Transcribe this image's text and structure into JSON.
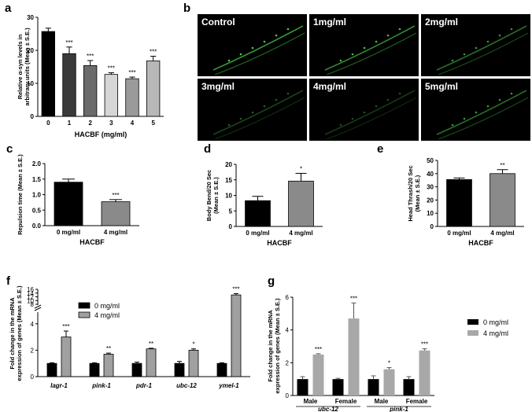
{
  "chart_data": [
    {
      "panel": "a",
      "type": "bar",
      "categories": [
        "0",
        "1",
        "2",
        "3",
        "4",
        "5"
      ],
      "values": [
        25.7,
        19.0,
        15.4,
        12.7,
        11.4,
        16.8
      ],
      "errors": [
        1.0,
        2.0,
        1.5,
        0.5,
        0.5,
        1.4
      ],
      "significance": [
        "",
        "***",
        "***",
        "***",
        "***",
        "***"
      ],
      "colors": [
        "#000000",
        "#3a3a3a",
        "#6b6b6b",
        "#d6d6d6",
        "#9a9a9a",
        "#b8b8b8"
      ],
      "xlabel": "HACBF (mg/ml)",
      "ylabel": "Relative α-syn levels in arbitrary units (Mean ± S.E.)",
      "ylim": [
        0,
        30
      ],
      "yticks": [
        "0",
        "10",
        "20",
        "30"
      ]
    },
    {
      "panel": "c",
      "type": "bar",
      "categories": [
        "0 mg/ml",
        "4 mg/ml"
      ],
      "values": [
        1.4,
        0.77
      ],
      "errors": [
        0.1,
        0.07
      ],
      "significance": [
        "",
        "***"
      ],
      "colors": [
        "#000000",
        "#8a8a8a"
      ],
      "xlabel": "HACBF",
      "ylabel": "Repulsion time (Mean ± S.E.)",
      "ylim": [
        0,
        2.0
      ],
      "yticks": [
        "0.0",
        "0.5",
        "1.0",
        "1.5",
        "2.0"
      ]
    },
    {
      "panel": "d",
      "type": "bar",
      "categories": [
        "0 mg/ml",
        "4 mg/ml"
      ],
      "values": [
        8.3,
        14.6
      ],
      "errors": [
        1.4,
        2.5
      ],
      "significance": [
        "",
        "*"
      ],
      "colors": [
        "#000000",
        "#8a8a8a"
      ],
      "xlabel": "HACBF",
      "ylabel": "Body Bend/20 Sec (Mean ± S.E.)",
      "ylim": [
        0,
        20
      ],
      "yticks": [
        "0",
        "5",
        "10",
        "15",
        "20"
      ]
    },
    {
      "panel": "e",
      "type": "bar",
      "categories": [
        "0 mg/ml",
        "4 mg/ml"
      ],
      "values": [
        35.5,
        40.0
      ],
      "errors": [
        1.2,
        3.0
      ],
      "significance": [
        "",
        "**"
      ],
      "colors": [
        "#000000",
        "#8a8a8a"
      ],
      "xlabel": "HACBF",
      "ylabel": "Head Thrash/20 Sec (Mean ± S.E.)",
      "ylim": [
        0,
        50
      ],
      "yticks": [
        "0",
        "10",
        "20",
        "30",
        "40",
        "50"
      ]
    },
    {
      "panel": "f",
      "type": "bar",
      "categories": [
        "lagr-1",
        "pink-1",
        "pdr-1",
        "ubc-12",
        "ymel-1"
      ],
      "series": [
        {
          "name": "0 mg/ml",
          "color": "#000000",
          "values": [
            1.0,
            1.0,
            1.0,
            1.0,
            1.0
          ],
          "errors": [
            0.05,
            0.05,
            0.1,
            0.15,
            0.05
          ]
        },
        {
          "name": "4 mg/ml",
          "color": "#a0a0a0",
          "values": [
            3.0,
            1.7,
            2.1,
            2.0,
            13.0
          ],
          "errors": [
            0.45,
            0.08,
            0.05,
            0.1,
            0.7
          ],
          "significance": [
            "***",
            "**",
            "**",
            "*",
            "***"
          ]
        }
      ],
      "ylabel": "Fold change in the mRNA expression of genes (Mean ± S.E.)",
      "ylim": [
        0,
        16
      ],
      "axis_break": [
        5,
        8
      ],
      "yticks": [
        "0",
        "2",
        "4",
        "8",
        "10",
        "12",
        "14",
        "16"
      ]
    },
    {
      "panel": "g",
      "type": "bar",
      "groups": [
        "ubc-12",
        "pink-1"
      ],
      "categories": [
        "Male",
        "Female",
        "Male",
        "Female"
      ],
      "series": [
        {
          "name": "0 mg/ml",
          "color": "#000000",
          "values": [
            1.0,
            1.0,
            1.0,
            1.0
          ],
          "errors": [
            0.15,
            0.05,
            0.2,
            0.15
          ]
        },
        {
          "name": "4 mg/ml",
          "color": "#a8a8a8",
          "values": [
            2.5,
            4.7,
            1.6,
            2.75
          ],
          "errors": [
            0.05,
            0.95,
            0.1,
            0.1
          ],
          "significance": [
            "***",
            "***",
            "*",
            "***"
          ]
        }
      ],
      "ylabel": "Fold change in the mRNA expression of genes (Mean ± S.E.)",
      "ylim": [
        0,
        6
      ],
      "yticks": [
        "0",
        "2",
        "4",
        "6"
      ]
    }
  ],
  "panels": {
    "labels": [
      "a",
      "b",
      "c",
      "d",
      "e",
      "f",
      "g"
    ]
  },
  "images": {
    "tiles": [
      "Control",
      "1mg/ml",
      "2mg/ml",
      "3mg/ml",
      "4mg/ml",
      "5mg/ml"
    ]
  }
}
